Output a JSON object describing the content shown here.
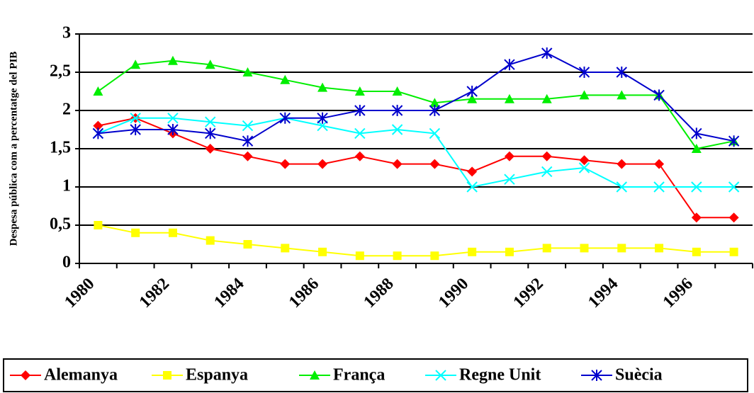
{
  "chart_data": {
    "type": "line",
    "y_label": "Despesa pública com a percentatge del PIB",
    "categories": [
      "1980",
      null,
      "1982",
      null,
      "1984",
      null,
      "1986",
      null,
      "1988",
      null,
      "1990",
      null,
      "1992",
      null,
      "1994",
      null,
      "1996",
      null
    ],
    "series": [
      {
        "name": "Alemanya",
        "color": "#ff0000",
        "marker": "diamond",
        "values": [
          1.8,
          1.9,
          1.7,
          1.5,
          1.4,
          1.3,
          1.3,
          1.4,
          1.3,
          1.3,
          1.2,
          1.4,
          1.4,
          1.35,
          1.3,
          1.3,
          0.6,
          0.6
        ]
      },
      {
        "name": "Espanya",
        "color": "#ffff00",
        "marker": "square",
        "values": [
          0.5,
          0.4,
          0.4,
          0.3,
          0.25,
          0.2,
          0.15,
          0.1,
          0.1,
          0.1,
          0.15,
          0.15,
          0.2,
          0.2,
          0.2,
          0.2,
          0.15,
          0.15
        ]
      },
      {
        "name": "França",
        "color": "#00ee00",
        "marker": "triangle",
        "values": [
          2.25,
          2.6,
          2.65,
          2.6,
          2.5,
          2.4,
          2.3,
          2.25,
          2.25,
          2.1,
          2.15,
          2.15,
          2.15,
          2.2,
          2.2,
          2.2,
          1.5,
          1.6
        ]
      },
      {
        "name": "Regne Unit",
        "color": "#00ffff",
        "marker": "x",
        "values": [
          1.7,
          1.9,
          1.9,
          1.85,
          1.8,
          1.9,
          1.8,
          1.7,
          1.75,
          1.7,
          1.0,
          1.1,
          1.2,
          1.25,
          1.0,
          1.0,
          1.0,
          1.0
        ]
      },
      {
        "name": "Suècia",
        "color": "#0000cc",
        "marker": "star",
        "values": [
          1.7,
          1.75,
          1.75,
          1.7,
          1.6,
          1.9,
          1.9,
          2.0,
          2.0,
          2.0,
          2.25,
          2.6,
          2.75,
          2.5,
          2.5,
          2.2,
          1.7,
          1.6
        ]
      }
    ],
    "ylim": [
      0,
      3
    ],
    "yticks": [
      0,
      {
        "value": 0.5,
        "label": "0,5"
      },
      1,
      {
        "value": 1.5,
        "label": "1,5"
      },
      2,
      {
        "value": 2.5,
        "label": "2,5"
      },
      3
    ],
    "grid": true,
    "legend": "bottom"
  }
}
